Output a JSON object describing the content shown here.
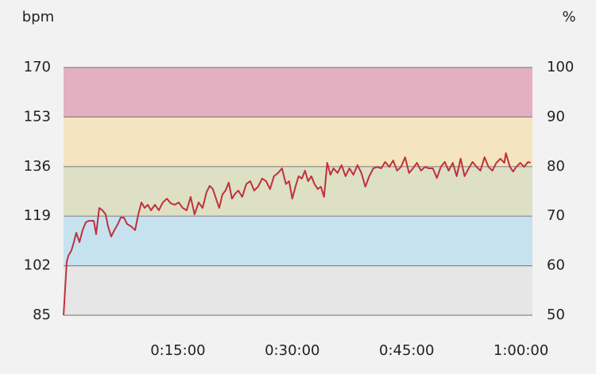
{
  "chart_data": {
    "type": "line",
    "y_label": "bpm",
    "y2_label": "%",
    "xlim": [
      0,
      3690
    ],
    "xticks": [
      {
        "value": 900,
        "label": "0:15:00"
      },
      {
        "value": 1800,
        "label": "0:30:00"
      },
      {
        "value": 2700,
        "label": "0:45:00"
      },
      {
        "value": 3600,
        "label": "1:00:00"
      }
    ],
    "ylim": [
      85,
      170
    ],
    "yticks": [
      85,
      102,
      119,
      136,
      153,
      170
    ],
    "y2lim": [
      50,
      100
    ],
    "y2ticks": [
      50,
      60,
      70,
      80,
      90,
      100
    ],
    "zone_colors": [
      "#e6e6e6",
      "#c7e2ef",
      "#dde0c5",
      "#f4e4c0",
      "#e4afc1"
    ],
    "grid": true,
    "series": [
      {
        "name": null,
        "color": "#c0313b",
        "x": [
          0,
          25,
          37.5,
          62.5,
          81,
          100,
          125,
          150,
          175,
          200,
          238,
          256,
          281,
          306,
          331,
          350,
          375,
          400,
          425,
          450,
          475,
          500,
          531,
          563,
          588,
          613,
          638,
          663,
          688,
          719,
          750,
          781,
          813,
          844,
          875,
          906,
          938,
          969,
          1000,
          1031,
          1063,
          1094,
          1125,
          1150,
          1175,
          1200,
          1225,
          1250,
          1275,
          1300,
          1325,
          1350,
          1375,
          1406,
          1438,
          1469,
          1500,
          1531,
          1563,
          1594,
          1625,
          1656,
          1688,
          1719,
          1750,
          1775,
          1800,
          1825,
          1850,
          1875,
          1900,
          1925,
          1950,
          1975,
          2000,
          2025,
          2050,
          2075,
          2100,
          2125,
          2156,
          2188,
          2219,
          2250,
          2281,
          2313,
          2344,
          2375,
          2406,
          2438,
          2469,
          2500,
          2531,
          2563,
          2594,
          2625,
          2656,
          2688,
          2719,
          2750,
          2781,
          2813,
          2844,
          2875,
          2906,
          2938,
          2969,
          3000,
          3031,
          3063,
          3094,
          3125,
          3156,
          3188,
          3219,
          3250,
          3281,
          3313,
          3344,
          3375,
          3406,
          3438,
          3469,
          3481,
          3513,
          3538,
          3563,
          3594,
          3625,
          3656,
          3675
        ],
        "values": [
          85,
          103.3,
          105.4,
          107.3,
          110.1,
          113.3,
          110.1,
          114.2,
          116.9,
          117.4,
          117.4,
          112.8,
          121.8,
          121,
          119.6,
          115.5,
          112,
          114.2,
          116.1,
          118.5,
          118.5,
          116.3,
          115.5,
          114.2,
          119.6,
          123.7,
          121.8,
          122.9,
          121,
          122.9,
          121,
          123.7,
          125,
          123.4,
          122.9,
          123.7,
          121.8,
          121,
          125.6,
          119.6,
          123.7,
          121.8,
          127.2,
          129.4,
          128.3,
          125,
          121.8,
          126.4,
          127.8,
          130.5,
          125,
          126.7,
          127.8,
          125.6,
          130,
          131,
          127.8,
          129.1,
          131.9,
          131,
          128.3,
          132.7,
          133.8,
          135.4,
          130,
          131,
          125,
          129.1,
          132.7,
          131.9,
          134.6,
          131,
          132.7,
          130,
          128.3,
          129.1,
          125.6,
          137.3,
          133.2,
          135.4,
          133.8,
          136.5,
          132.7,
          135.4,
          133.2,
          136.5,
          133.8,
          129.1,
          132.7,
          135.4,
          135.9,
          135.4,
          137.6,
          135.9,
          138.1,
          134.6,
          135.9,
          139.2,
          133.8,
          135.4,
          137.3,
          134.6,
          135.9,
          135.4,
          135.4,
          132.1,
          135.9,
          137.6,
          134.6,
          137.3,
          132.7,
          138.7,
          132.7,
          135.4,
          137.6,
          135.9,
          134.6,
          139.2,
          135.9,
          134.6,
          137.3,
          138.7,
          137.3,
          140.6,
          135.9,
          134.3,
          135.9,
          137.3,
          135.9,
          137.6,
          137.3
        ]
      }
    ]
  }
}
